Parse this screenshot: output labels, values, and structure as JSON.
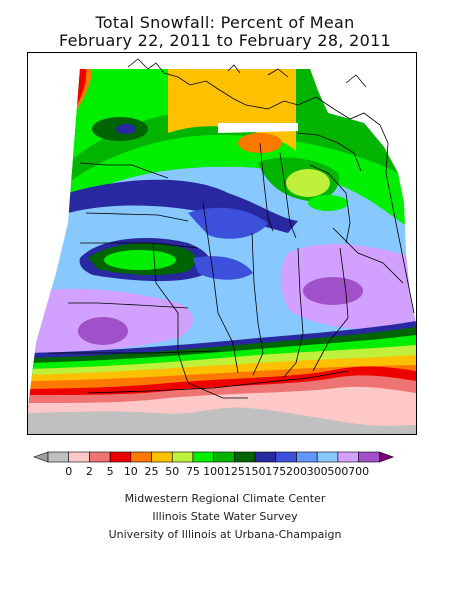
{
  "title": {
    "line1": "Total Snowfall: Percent of Mean",
    "line2": "February 22, 2011 to February 28, 2011"
  },
  "legend": {
    "bins": [
      {
        "label": "0",
        "color": "#c0c0c0"
      },
      {
        "label": "2",
        "color": "#ffc8c8"
      },
      {
        "label": "5",
        "color": "#ee7474"
      },
      {
        "label": "10",
        "color": "#ee0000"
      },
      {
        "label": "25",
        "color": "#ff7800"
      },
      {
        "label": "50",
        "color": "#ffc000"
      },
      {
        "label": "75",
        "color": "#bff03c"
      },
      {
        "label": "100",
        "color": "#00ee00"
      },
      {
        "label": "125",
        "color": "#00b400"
      },
      {
        "label": "150",
        "color": "#006400"
      },
      {
        "label": "175",
        "color": "#2828a0"
      },
      {
        "label": "200",
        "color": "#3c50dc"
      },
      {
        "label": "300",
        "color": "#6496ff"
      },
      {
        "label": "500",
        "color": "#87c8ff"
      },
      {
        "label": "700",
        "color": "#d2a0ff"
      }
    ],
    "low_color": "#a0a0a0",
    "high_color": "#a050c8",
    "top_color": "#780078"
  },
  "credits": {
    "line1": "Midwestern Regional Climate Center",
    "line2": "Illinois State Water Survey",
    "line3": "University of Illinois at Urbana-Champaign"
  }
}
